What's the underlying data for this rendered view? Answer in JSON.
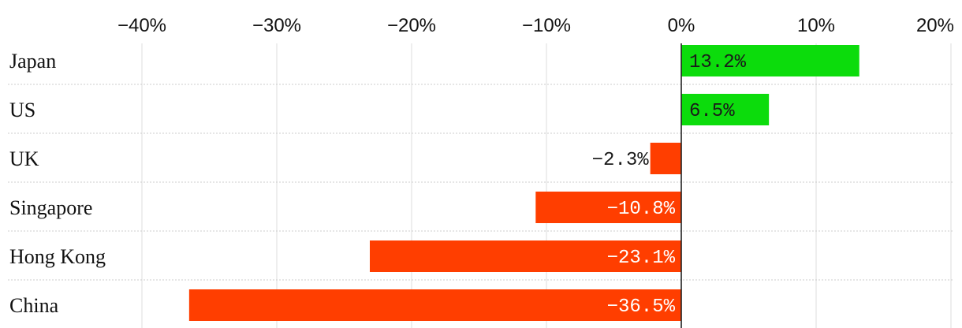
{
  "chart_data": {
    "type": "bar",
    "orientation": "horizontal",
    "categories": [
      "Japan",
      "US",
      "UK",
      "Singapore",
      "Hong Kong",
      "China"
    ],
    "values": [
      13.2,
      6.5,
      -2.3,
      -10.8,
      -23.1,
      -36.5
    ],
    "value_labels": [
      "13.2%",
      "6.5%",
      "−2.3%",
      "−10.8%",
      "−23.1%",
      "−36.5%"
    ],
    "x_ticks": [
      -40,
      -30,
      -20,
      -10,
      0,
      10,
      20
    ],
    "x_tick_labels": [
      "−40%",
      "−30%",
      "−20%",
      "−10%",
      "0%",
      "10%",
      "20%"
    ],
    "xlim": [
      -40,
      20
    ],
    "title": "",
    "xlabel": "",
    "ylabel": "",
    "grid": true,
    "legend": "none",
    "colors": {
      "positive": "#0cdc0c",
      "negative": "#ff3e00",
      "grid": "#e3e3e3",
      "separator": "#cccccc",
      "zero_line": "#222222",
      "text_light": "#ffffff",
      "text_dark": "#1a1a1a"
    }
  }
}
